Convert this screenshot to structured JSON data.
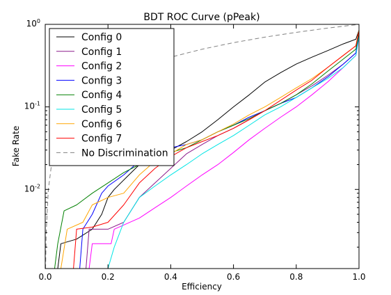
{
  "chart_data": {
    "type": "line",
    "title": "BDT ROC Curve (pPeak)",
    "xlabel": "Efficiency",
    "ylabel": "Fake Rate",
    "xlim": [
      0.0,
      1.0
    ],
    "ylim": [
      0.0011,
      1.0
    ],
    "yscale": "log",
    "grid": false,
    "legend_position": "top-left",
    "xticks": [
      0.0,
      0.2,
      0.4,
      0.6,
      0.8,
      1.0
    ],
    "xtick_labels": [
      "0.0",
      "0.2",
      "0.4",
      "0.6",
      "0.8",
      "1.0"
    ],
    "yticks": [
      0.01,
      0.1,
      1.0
    ],
    "ytick_labels": [
      {
        "base": "10",
        "exp": "-2"
      },
      {
        "base": "10",
        "exp": "-1"
      },
      {
        "base": "10",
        "exp": "0"
      }
    ],
    "series": [
      {
        "name": "Config 0",
        "color": "#000000",
        "dash": "",
        "points": [
          [
            0.0,
            0.0011
          ],
          [
            0.04,
            0.0011
          ],
          [
            0.05,
            0.0022
          ],
          [
            0.1,
            0.0025
          ],
          [
            0.15,
            0.0033
          ],
          [
            0.18,
            0.005
          ],
          [
            0.2,
            0.008
          ],
          [
            0.22,
            0.01
          ],
          [
            0.25,
            0.013
          ],
          [
            0.3,
            0.02
          ],
          [
            0.35,
            0.025
          ],
          [
            0.4,
            0.03
          ],
          [
            0.45,
            0.038
          ],
          [
            0.5,
            0.05
          ],
          [
            0.55,
            0.07
          ],
          [
            0.6,
            0.1
          ],
          [
            0.65,
            0.14
          ],
          [
            0.7,
            0.2
          ],
          [
            0.75,
            0.26
          ],
          [
            0.8,
            0.33
          ],
          [
            0.85,
            0.4
          ],
          [
            0.9,
            0.48
          ],
          [
            0.95,
            0.58
          ],
          [
            0.99,
            0.66
          ],
          [
            1.0,
            0.85
          ]
        ]
      },
      {
        "name": "Config 1",
        "color": "#8b1a8b",
        "dash": "",
        "points": [
          [
            0.0,
            0.0011
          ],
          [
            0.13,
            0.0011
          ],
          [
            0.14,
            0.0033
          ],
          [
            0.2,
            0.0033
          ],
          [
            0.25,
            0.004
          ],
          [
            0.3,
            0.008
          ],
          [
            0.35,
            0.012
          ],
          [
            0.4,
            0.018
          ],
          [
            0.45,
            0.027
          ],
          [
            0.5,
            0.035
          ],
          [
            0.55,
            0.045
          ],
          [
            0.6,
            0.055
          ],
          [
            0.65,
            0.07
          ],
          [
            0.7,
            0.09
          ],
          [
            0.75,
            0.11
          ],
          [
            0.8,
            0.14
          ],
          [
            0.85,
            0.18
          ],
          [
            0.9,
            0.24
          ],
          [
            0.95,
            0.33
          ],
          [
            0.99,
            0.45
          ],
          [
            1.0,
            0.75
          ]
        ]
      },
      {
        "name": "Config 2",
        "color": "#ff00ff",
        "dash": "",
        "points": [
          [
            0.0,
            0.0011
          ],
          [
            0.14,
            0.0011
          ],
          [
            0.15,
            0.0022
          ],
          [
            0.21,
            0.0022
          ],
          [
            0.22,
            0.0033
          ],
          [
            0.3,
            0.0045
          ],
          [
            0.35,
            0.006
          ],
          [
            0.4,
            0.008
          ],
          [
            0.45,
            0.011
          ],
          [
            0.5,
            0.015
          ],
          [
            0.55,
            0.02
          ],
          [
            0.6,
            0.028
          ],
          [
            0.65,
            0.04
          ],
          [
            0.7,
            0.055
          ],
          [
            0.75,
            0.075
          ],
          [
            0.8,
            0.1
          ],
          [
            0.85,
            0.14
          ],
          [
            0.9,
            0.2
          ],
          [
            0.95,
            0.3
          ],
          [
            0.99,
            0.42
          ],
          [
            1.0,
            0.7
          ]
        ]
      },
      {
        "name": "Config 3",
        "color": "#0000ff",
        "dash": "",
        "points": [
          [
            0.0,
            0.0011
          ],
          [
            0.11,
            0.0011
          ],
          [
            0.12,
            0.0033
          ],
          [
            0.15,
            0.005
          ],
          [
            0.18,
            0.009
          ],
          [
            0.2,
            0.011
          ],
          [
            0.25,
            0.015
          ],
          [
            0.3,
            0.022
          ],
          [
            0.35,
            0.028
          ],
          [
            0.4,
            0.032
          ],
          [
            0.45,
            0.035
          ],
          [
            0.5,
            0.04
          ],
          [
            0.55,
            0.05
          ],
          [
            0.6,
            0.06
          ],
          [
            0.65,
            0.075
          ],
          [
            0.7,
            0.09
          ],
          [
            0.75,
            0.11
          ],
          [
            0.8,
            0.13
          ],
          [
            0.85,
            0.17
          ],
          [
            0.9,
            0.23
          ],
          [
            0.95,
            0.33
          ],
          [
            0.99,
            0.45
          ],
          [
            1.0,
            0.75
          ]
        ]
      },
      {
        "name": "Config 4",
        "color": "#008000",
        "dash": "",
        "points": [
          [
            0.0,
            0.0011
          ],
          [
            0.03,
            0.0011
          ],
          [
            0.04,
            0.0022
          ],
          [
            0.06,
            0.0055
          ],
          [
            0.1,
            0.0065
          ],
          [
            0.15,
            0.009
          ],
          [
            0.2,
            0.012
          ],
          [
            0.25,
            0.016
          ],
          [
            0.3,
            0.02
          ],
          [
            0.35,
            0.025
          ],
          [
            0.4,
            0.028
          ],
          [
            0.45,
            0.032
          ],
          [
            0.5,
            0.04
          ],
          [
            0.55,
            0.05
          ],
          [
            0.6,
            0.06
          ],
          [
            0.65,
            0.072
          ],
          [
            0.7,
            0.09
          ],
          [
            0.75,
            0.11
          ],
          [
            0.8,
            0.14
          ],
          [
            0.85,
            0.19
          ],
          [
            0.9,
            0.27
          ],
          [
            0.95,
            0.38
          ],
          [
            0.99,
            0.5
          ],
          [
            1.0,
            0.8
          ]
        ]
      },
      {
        "name": "Config 5",
        "color": "#00e5e5",
        "dash": "",
        "points": [
          [
            0.0,
            0.0011
          ],
          [
            0.2,
            0.0011
          ],
          [
            0.22,
            0.002
          ],
          [
            0.25,
            0.004
          ],
          [
            0.3,
            0.008
          ],
          [
            0.35,
            0.011
          ],
          [
            0.4,
            0.015
          ],
          [
            0.45,
            0.02
          ],
          [
            0.5,
            0.027
          ],
          [
            0.55,
            0.035
          ],
          [
            0.6,
            0.045
          ],
          [
            0.65,
            0.06
          ],
          [
            0.7,
            0.08
          ],
          [
            0.75,
            0.1
          ],
          [
            0.8,
            0.13
          ],
          [
            0.85,
            0.17
          ],
          [
            0.9,
            0.22
          ],
          [
            0.95,
            0.3
          ],
          [
            0.99,
            0.42
          ],
          [
            1.0,
            0.72
          ]
        ]
      },
      {
        "name": "Config 6",
        "color": "#ffa500",
        "dash": "",
        "points": [
          [
            0.0,
            0.0011
          ],
          [
            0.05,
            0.0011
          ],
          [
            0.07,
            0.0033
          ],
          [
            0.12,
            0.004
          ],
          [
            0.15,
            0.0065
          ],
          [
            0.2,
            0.008
          ],
          [
            0.25,
            0.009
          ],
          [
            0.3,
            0.015
          ],
          [
            0.35,
            0.022
          ],
          [
            0.4,
            0.027
          ],
          [
            0.45,
            0.035
          ],
          [
            0.5,
            0.04
          ],
          [
            0.55,
            0.05
          ],
          [
            0.6,
            0.062
          ],
          [
            0.65,
            0.08
          ],
          [
            0.7,
            0.1
          ],
          [
            0.75,
            0.13
          ],
          [
            0.8,
            0.17
          ],
          [
            0.85,
            0.22
          ],
          [
            0.9,
            0.3
          ],
          [
            0.95,
            0.42
          ],
          [
            0.99,
            0.55
          ],
          [
            1.0,
            0.85
          ]
        ]
      },
      {
        "name": "Config 7",
        "color": "#ff0000",
        "dash": "",
        "points": [
          [
            0.0,
            0.0011
          ],
          [
            0.09,
            0.0011
          ],
          [
            0.1,
            0.0033
          ],
          [
            0.15,
            0.0035
          ],
          [
            0.2,
            0.004
          ],
          [
            0.25,
            0.0065
          ],
          [
            0.3,
            0.012
          ],
          [
            0.35,
            0.018
          ],
          [
            0.4,
            0.025
          ],
          [
            0.45,
            0.032
          ],
          [
            0.5,
            0.038
          ],
          [
            0.55,
            0.045
          ],
          [
            0.6,
            0.055
          ],
          [
            0.65,
            0.07
          ],
          [
            0.7,
            0.09
          ],
          [
            0.75,
            0.12
          ],
          [
            0.8,
            0.16
          ],
          [
            0.85,
            0.21
          ],
          [
            0.9,
            0.3
          ],
          [
            0.95,
            0.42
          ],
          [
            0.99,
            0.55
          ],
          [
            1.0,
            0.82
          ]
        ]
      },
      {
        "name": "No Discrimination",
        "color": "#808080",
        "dash": "6,4",
        "points": [
          [
            0.0011,
            0.0011
          ],
          [
            0.003,
            0.003
          ],
          [
            0.01,
            0.01
          ],
          [
            0.02,
            0.02
          ],
          [
            0.05,
            0.05
          ],
          [
            0.1,
            0.1
          ],
          [
            0.15,
            0.15
          ],
          [
            0.2,
            0.2
          ],
          [
            0.3,
            0.3
          ],
          [
            0.4,
            0.4
          ],
          [
            0.5,
            0.5
          ],
          [
            0.6,
            0.6
          ],
          [
            0.7,
            0.7
          ],
          [
            0.8,
            0.8
          ],
          [
            0.9,
            0.9
          ],
          [
            1.0,
            1.0
          ]
        ]
      }
    ]
  }
}
